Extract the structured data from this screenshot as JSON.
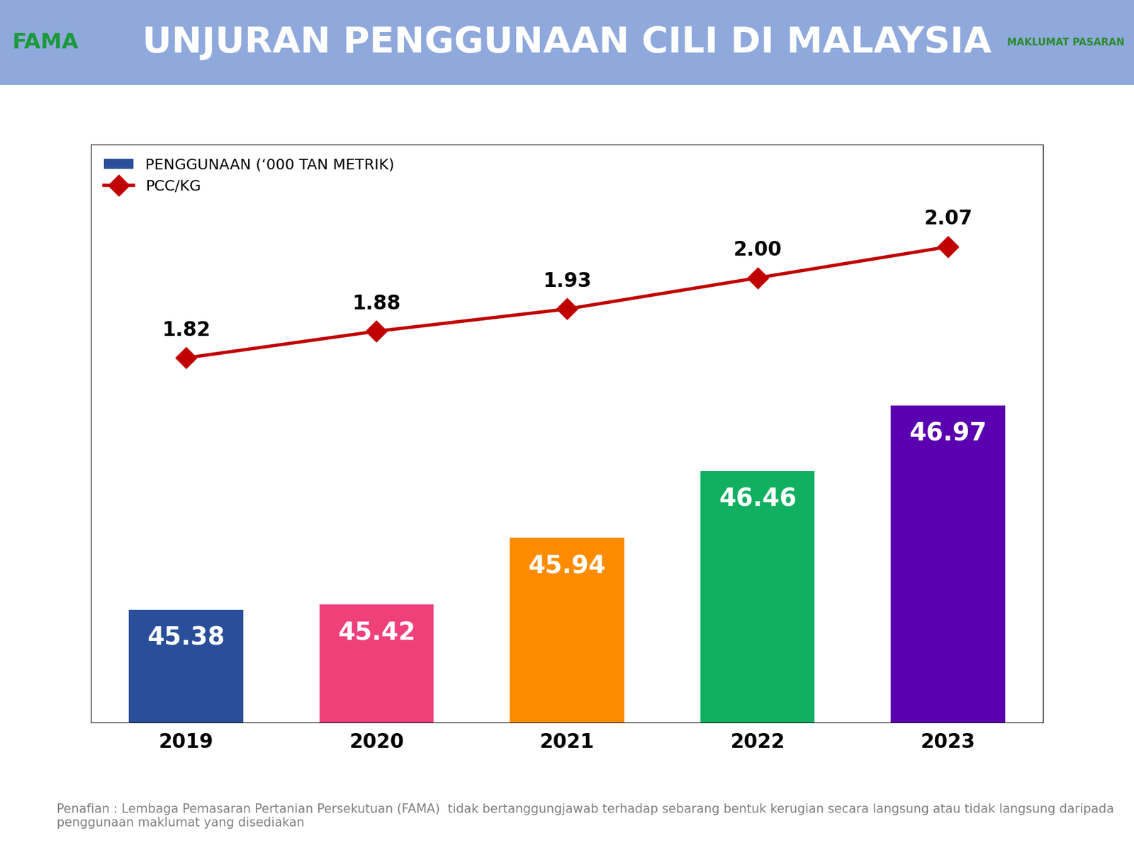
{
  "header": {
    "logo_left": "FAMA",
    "logo_right": "MAKLUMAT PASARAN"
  },
  "disclaimer": "Penafian : Lembaga Pemasaran Pertanian Persekutuan (FAMA)  tidak bertanggungjawab terhadap sebarang bentuk kerugian secara langsung atau tidak langsung daripada penggunaan maklumat yang disediakan",
  "chart_data": {
    "type": "bar",
    "title": "UNJURAN PENGGUNAAN CILI DI MALAYSIA",
    "categories": [
      "2019",
      "2020",
      "2021",
      "2022",
      "2023"
    ],
    "series": [
      {
        "name": "PENGGUNAAN (‘000 TAN METRIK)",
        "type": "bar",
        "colors": [
          "#2a4f9a",
          "#f0407a",
          "#ff8c00",
          "#10b060",
          "#5a00b0"
        ],
        "values": [
          45.38,
          45.42,
          45.94,
          46.46,
          46.97
        ]
      },
      {
        "name": "PCC/KG",
        "type": "line",
        "axis": "y2",
        "color": "#c00000",
        "marker": "D",
        "values": [
          1.82,
          1.88,
          1.93,
          2.0,
          2.07
        ],
        "value_labels": [
          "1.82",
          "1.88",
          "1.93",
          "2.00",
          "2.07"
        ]
      }
    ],
    "ylim": [
      44.5,
      49
    ],
    "y2lim": [
      1.0,
      2.3
    ],
    "data_labels": true,
    "tick_labels": "x",
    "legend": "upper left",
    "grid": false
  }
}
